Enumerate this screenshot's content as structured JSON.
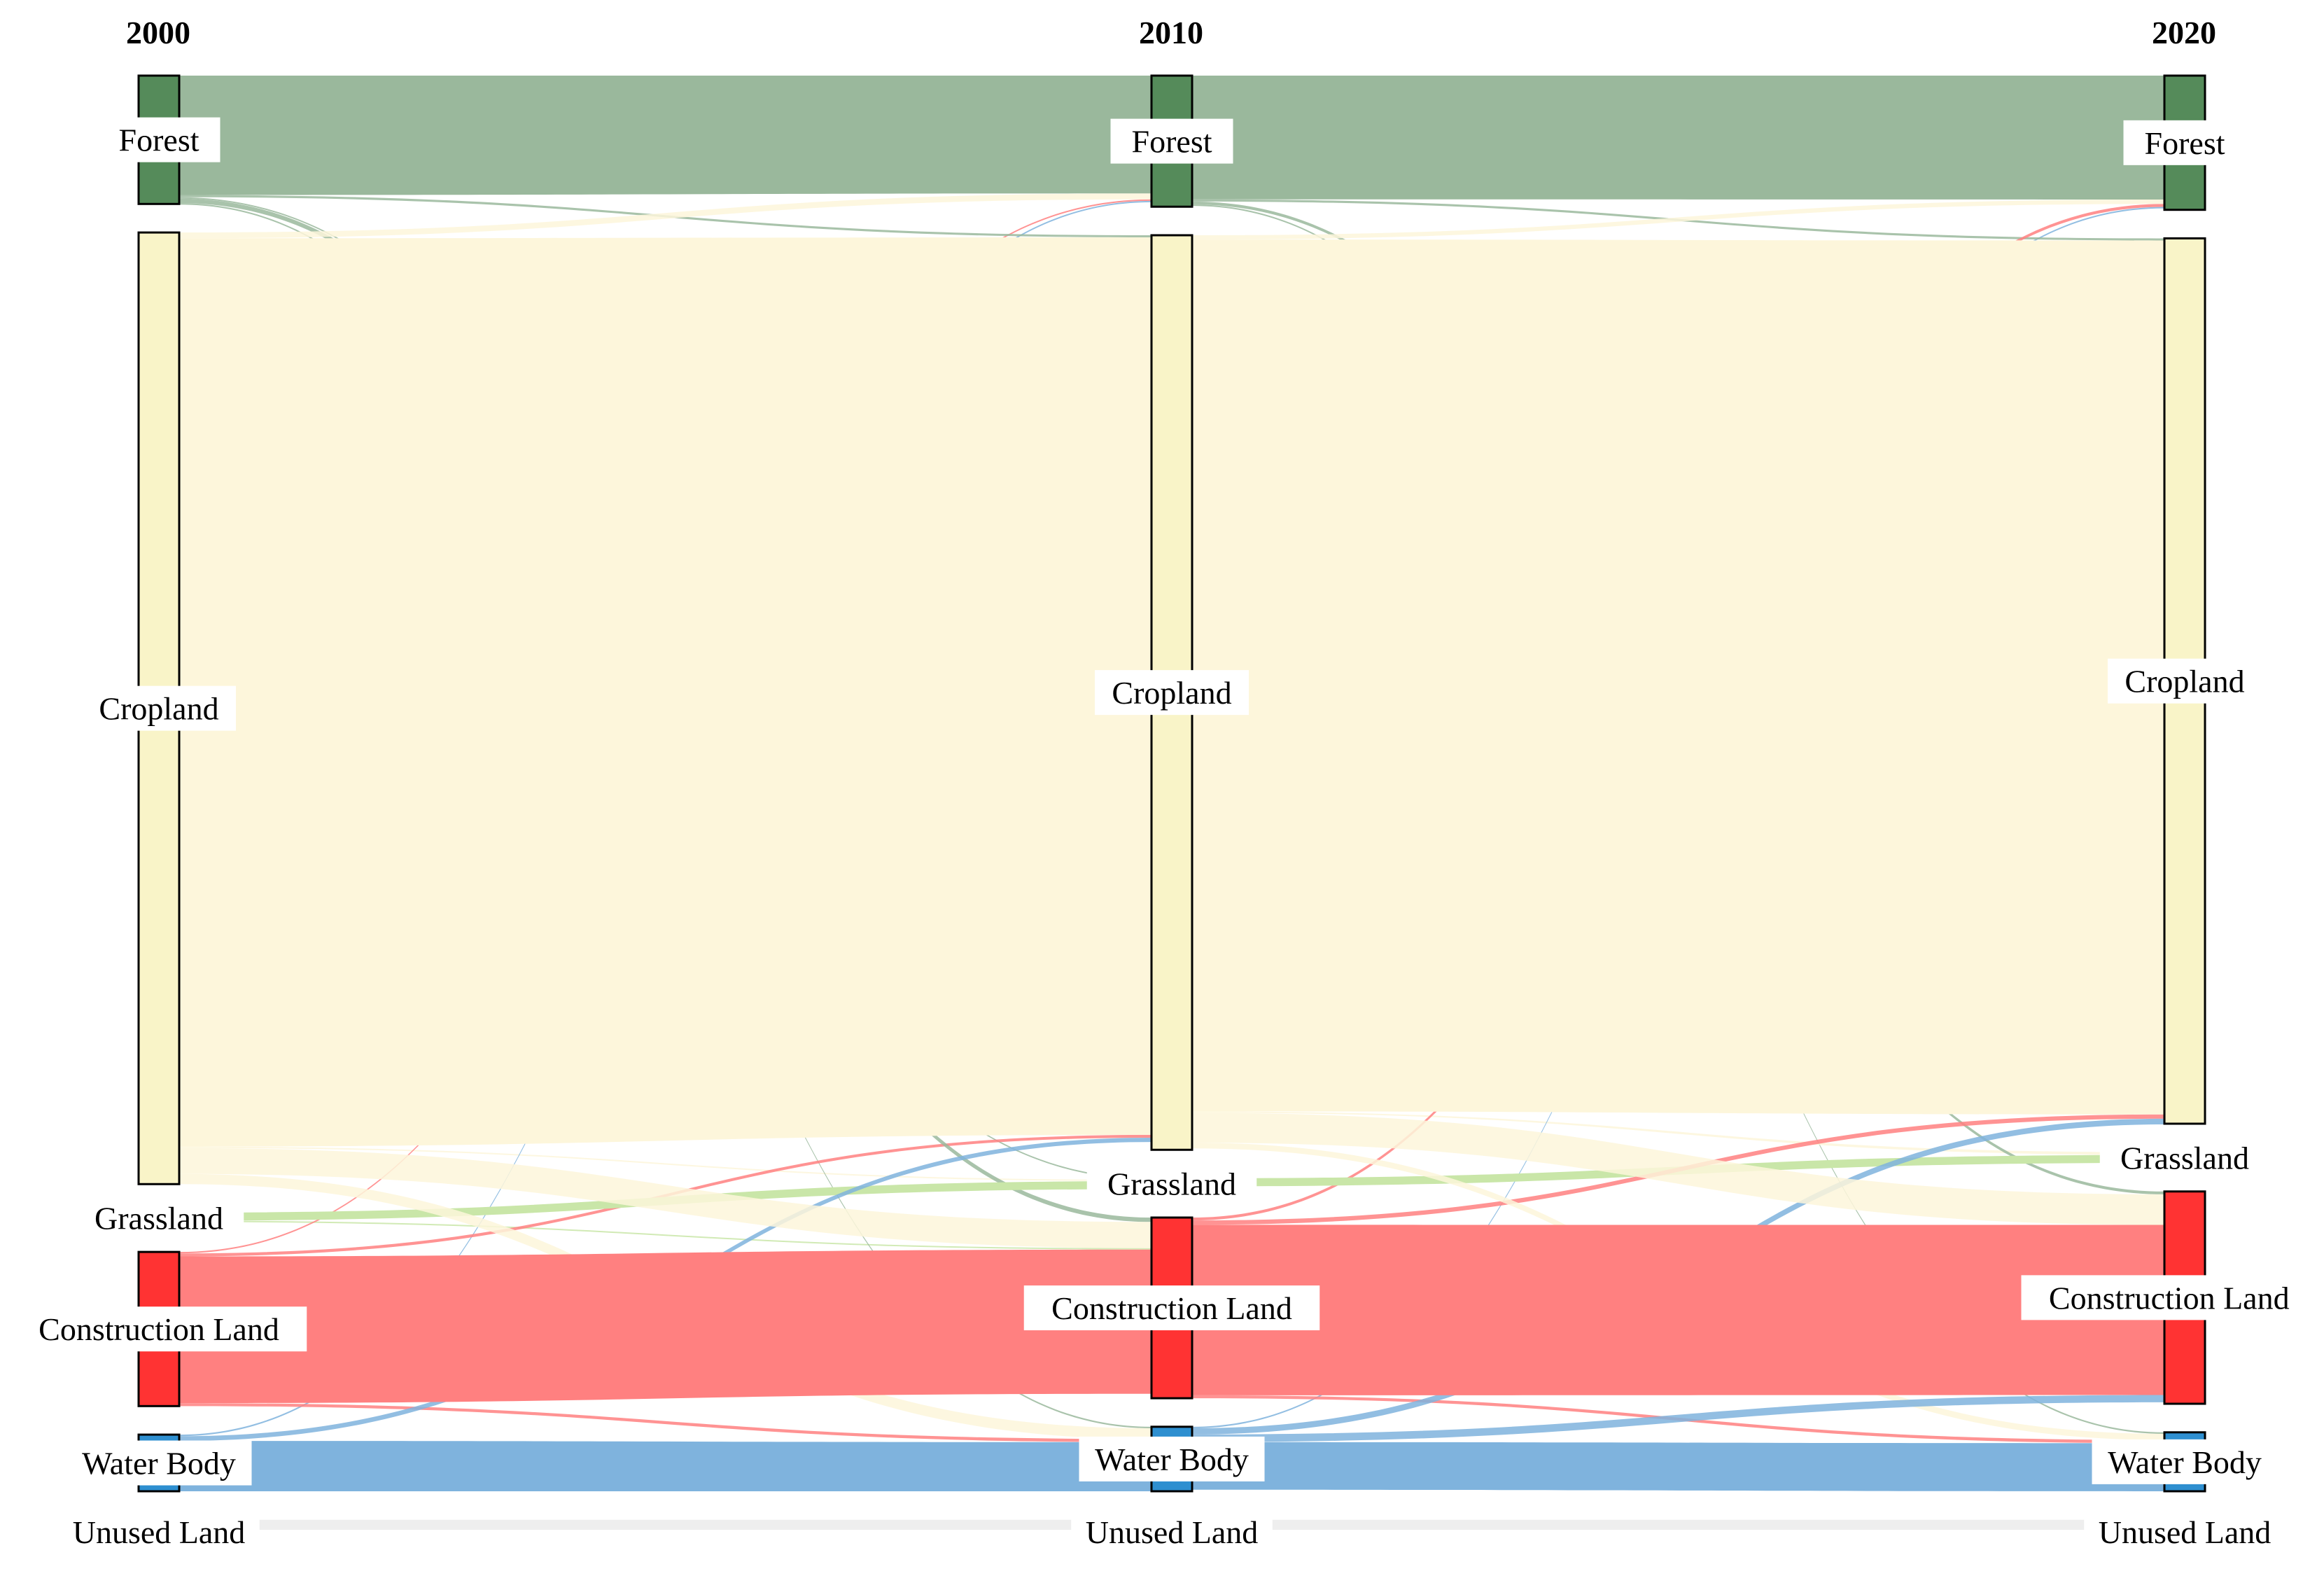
{
  "diagram": {
    "type": "sankey",
    "years": [
      "2000",
      "2010",
      "2020"
    ],
    "categories": [
      {
        "key": "forest",
        "label": "Forest",
        "node_color": "#558B5A",
        "flow_color": "#9AB89C"
      },
      {
        "key": "cropland",
        "label": "Cropland",
        "node_color": "#F9F4C8",
        "flow_color": "#FDF6DB"
      },
      {
        "key": "grassland",
        "label": "Grassland",
        "node_color": "#B8DE8E",
        "flow_color": "#C9E6A8"
      },
      {
        "key": "construction",
        "label": "Construction Land",
        "node_color": "#FF3333",
        "flow_color": "#FF8080"
      },
      {
        "key": "water",
        "label": "Water Body",
        "node_color": "#2E8FD0",
        "flow_color": "#7FB3DD"
      },
      {
        "key": "unused",
        "label": "Unused Land",
        "node_color": "#DDDDDD",
        "flow_color": "#EEEEEE"
      }
    ],
    "stages": [
      {
        "year": "2000",
        "values": {
          "forest": 8.6,
          "cropland": 66,
          "grassland": 0.4,
          "construction": 10.4,
          "water": 3.6,
          "unused": 0.2
        }
      },
      {
        "year": "2010",
        "values": {
          "forest": 8.9,
          "cropland": 64.2,
          "grassland": 0.4,
          "construction": 12.4,
          "water": 4.2,
          "unused": 0.2
        }
      },
      {
        "year": "2020",
        "values": {
          "forest": 9.1,
          "cropland": 62,
          "grassland": 0.4,
          "construction": 14.6,
          "water": 3.8,
          "unused": 0.2
        }
      }
    ],
    "flows": [
      {
        "stage": 0,
        "from": "forest",
        "to": "forest",
        "value": 8.0
      },
      {
        "stage": 0,
        "from": "forest",
        "to": "cropland",
        "value": 0.15
      },
      {
        "stage": 0,
        "from": "forest",
        "to": "grassland",
        "value": 0.05
      },
      {
        "stage": 0,
        "from": "forest",
        "to": "construction",
        "value": 0.3
      },
      {
        "stage": 0,
        "from": "forest",
        "to": "water",
        "value": 0.1
      },
      {
        "stage": 0,
        "from": "cropland",
        "to": "forest",
        "value": 0.4
      },
      {
        "stage": 0,
        "from": "cropland",
        "to": "cropland",
        "value": 63.0
      },
      {
        "stage": 0,
        "from": "cropland",
        "to": "grassland",
        "value": 0.05
      },
      {
        "stage": 0,
        "from": "cropland",
        "to": "construction",
        "value": 1.8
      },
      {
        "stage": 0,
        "from": "cropland",
        "to": "water",
        "value": 0.7
      },
      {
        "stage": 0,
        "from": "grassland",
        "to": "grassland",
        "value": 0.3
      },
      {
        "stage": 0,
        "from": "grassland",
        "to": "construction",
        "value": 0.05
      },
      {
        "stage": 0,
        "from": "construction",
        "to": "forest",
        "value": 0.1
      },
      {
        "stage": 0,
        "from": "construction",
        "to": "cropland",
        "value": 0.2
      },
      {
        "stage": 0,
        "from": "construction",
        "to": "construction",
        "value": 9.9
      },
      {
        "stage": 0,
        "from": "construction",
        "to": "water",
        "value": 0.2
      },
      {
        "stage": 0,
        "from": "water",
        "to": "forest",
        "value": 0.1
      },
      {
        "stage": 0,
        "from": "water",
        "to": "cropland",
        "value": 0.3
      },
      {
        "stage": 0,
        "from": "water",
        "to": "water",
        "value": 3.2
      },
      {
        "stage": 0,
        "from": "unused",
        "to": "unused",
        "value": 0.2
      },
      {
        "stage": 1,
        "from": "forest",
        "to": "forest",
        "value": 8.4
      },
      {
        "stage": 1,
        "from": "forest",
        "to": "cropland",
        "value": 0.15
      },
      {
        "stage": 1,
        "from": "forest",
        "to": "construction",
        "value": 0.2
      },
      {
        "stage": 1,
        "from": "forest",
        "to": "water",
        "value": 0.1
      },
      {
        "stage": 1,
        "from": "cropland",
        "to": "forest",
        "value": 0.3
      },
      {
        "stage": 1,
        "from": "cropland",
        "to": "cropland",
        "value": 61.2
      },
      {
        "stage": 1,
        "from": "cropland",
        "to": "grassland",
        "value": 0.1
      },
      {
        "stage": 1,
        "from": "cropland",
        "to": "construction",
        "value": 2.1
      },
      {
        "stage": 1,
        "from": "cropland",
        "to": "water",
        "value": 0.4
      },
      {
        "stage": 1,
        "from": "grassland",
        "to": "grassland",
        "value": 0.3
      },
      {
        "stage": 1,
        "from": "construction",
        "to": "forest",
        "value": 0.2
      },
      {
        "stage": 1,
        "from": "construction",
        "to": "cropland",
        "value": 0.3
      },
      {
        "stage": 1,
        "from": "construction",
        "to": "construction",
        "value": 11.7
      },
      {
        "stage": 1,
        "from": "construction",
        "to": "water",
        "value": 0.2
      },
      {
        "stage": 1,
        "from": "water",
        "to": "forest",
        "value": 0.1
      },
      {
        "stage": 1,
        "from": "water",
        "to": "cropland",
        "value": 0.4
      },
      {
        "stage": 1,
        "from": "water",
        "to": "construction",
        "value": 0.5
      },
      {
        "stage": 1,
        "from": "water",
        "to": "water",
        "value": 3.1
      },
      {
        "stage": 1,
        "from": "unused",
        "to": "unused",
        "value": 0.2
      }
    ]
  }
}
